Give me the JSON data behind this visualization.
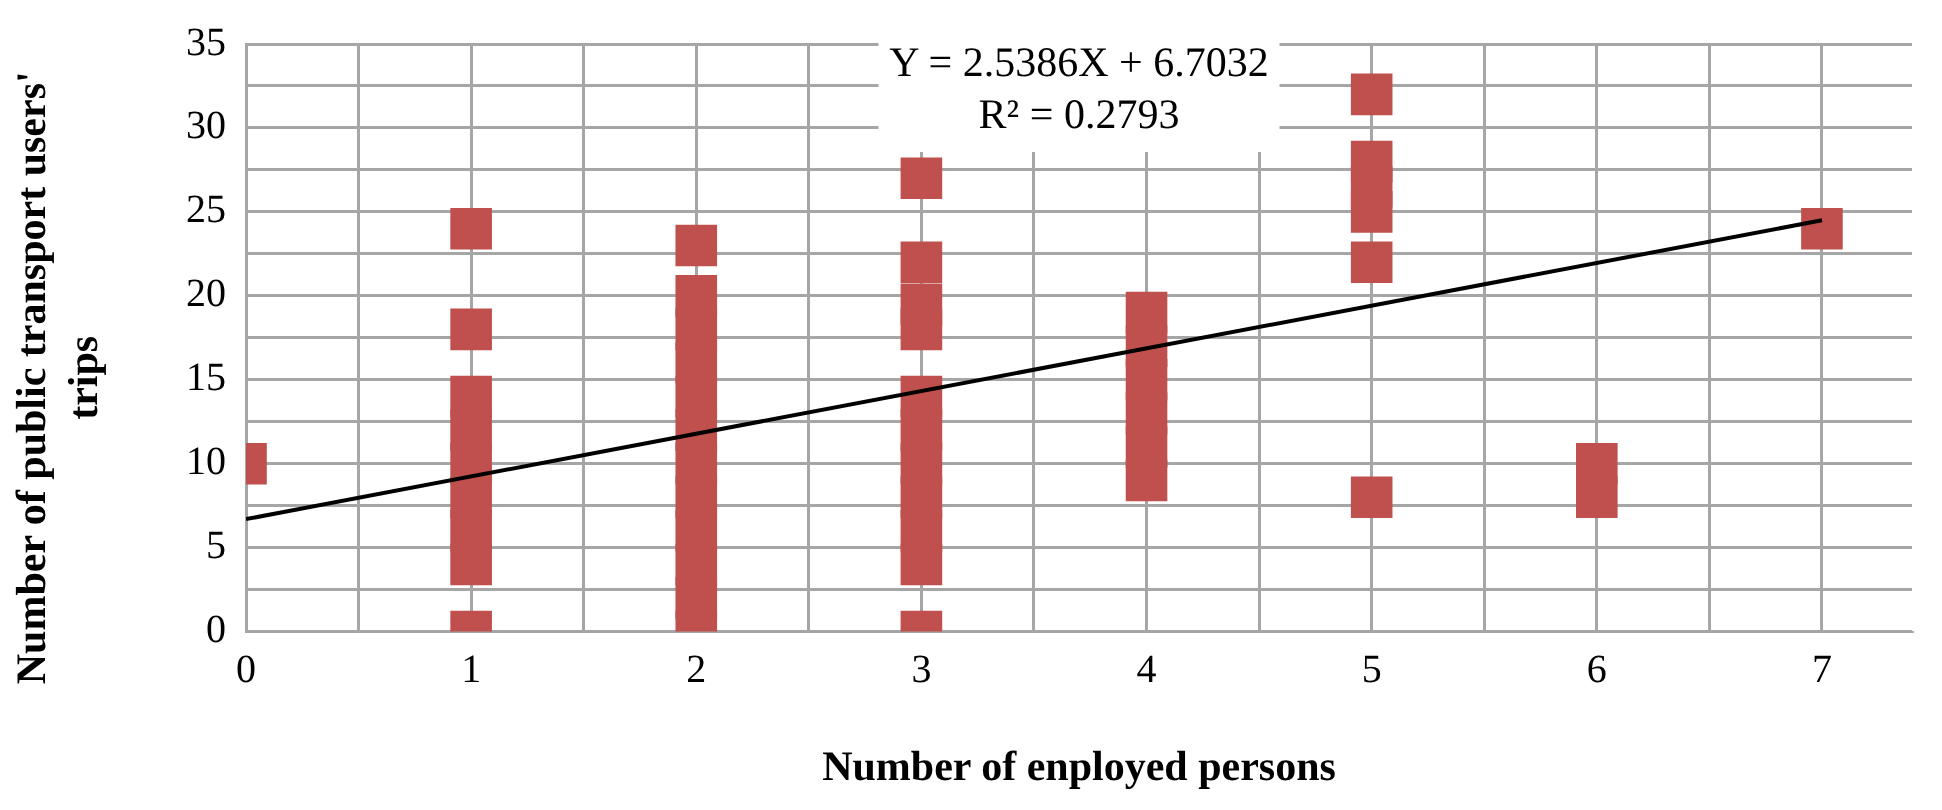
{
  "chart_data": {
    "type": "scatter",
    "xlabel": "Number of enployed persons",
    "ylabel": "Number of public transport users' trips",
    "annotations": [
      "Y = 2.5386X + 6.7032",
      "R² = 0.2793"
    ],
    "xlim": [
      0,
      7.4
    ],
    "ylim": [
      0,
      35
    ],
    "xticks": [
      0,
      {
        "value": 0.5,
        "label": null
      },
      1,
      {
        "value": 1.5,
        "label": null
      },
      2,
      {
        "value": 2.5,
        "label": null
      },
      3,
      {
        "value": 3.5,
        "label": null
      },
      4,
      {
        "value": 4.5,
        "label": null
      },
      5,
      {
        "value": 5.5,
        "label": null
      },
      6,
      {
        "value": 6.5,
        "label": null
      },
      7
    ],
    "yticks": [
      0,
      {
        "value": 2.5,
        "label": null
      },
      5,
      {
        "value": 7.5,
        "label": null
      },
      10,
      {
        "value": 12.5,
        "label": null
      },
      15,
      {
        "value": 17.5,
        "label": null
      },
      20,
      {
        "value": 22.5,
        "label": null
      },
      25,
      {
        "value": 27.5,
        "label": null
      },
      30,
      {
        "value": 32.5,
        "label": null
      },
      35
    ],
    "grid": true,
    "legend": false,
    "marker": "square",
    "series": [
      {
        "color": "#c0504d",
        "x": [
          0,
          1,
          1,
          1,
          1,
          1,
          1,
          1,
          1,
          1,
          2,
          2,
          2,
          2,
          2,
          2,
          2,
          2,
          2,
          2,
          2,
          2,
          3,
          3,
          3,
          3,
          3,
          3,
          3,
          3,
          3,
          3,
          3,
          4,
          4,
          4,
          4,
          4,
          4,
          5,
          5,
          5,
          5,
          5,
          5,
          6,
          6,
          7
        ],
        "values": [
          10,
          24,
          18,
          14,
          12,
          10,
          8,
          6,
          4,
          0,
          23,
          20,
          18,
          16,
          14,
          12,
          10,
          8,
          6,
          4,
          2,
          0,
          27,
          22,
          19.5,
          18,
          14,
          12,
          10,
          8,
          6,
          4,
          0,
          19,
          17,
          15,
          13,
          11,
          9,
          32,
          28,
          26.5,
          25,
          22,
          8,
          10,
          8,
          24
        ]
      },
      {
        "type": "line",
        "color": "#000000",
        "marker": "none",
        "x": [
          0,
          7
        ],
        "values": [
          6.7,
          24.5
        ]
      }
    ]
  }
}
